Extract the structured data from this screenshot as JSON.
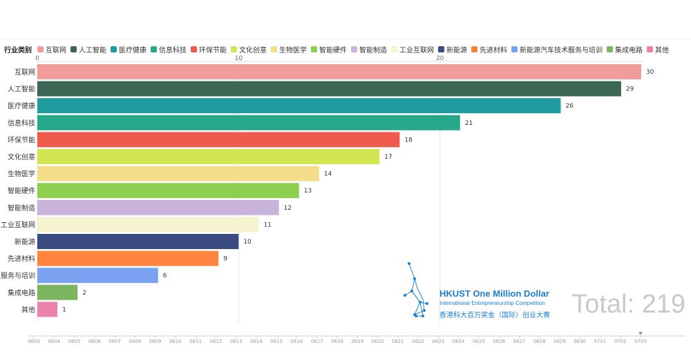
{
  "legend": {
    "title": "行业类别",
    "items": [
      {
        "label": "互联网",
        "color": "#f29b9b"
      },
      {
        "label": "人工智能",
        "color": "#3b6654"
      },
      {
        "label": "医疗健康",
        "color": "#1f9ba0"
      },
      {
        "label": "信息科技",
        "color": "#26a98a"
      },
      {
        "label": "环保节能",
        "color": "#f05a4d"
      },
      {
        "label": "文化创意",
        "color": "#d4e554"
      },
      {
        "label": "生物医学",
        "color": "#f4dd88"
      },
      {
        "label": "智能硬件",
        "color": "#8fcf4f"
      },
      {
        "label": "智能制造",
        "color": "#c8b3da"
      },
      {
        "label": "工业互联网",
        "color": "#f6f3cf"
      },
      {
        "label": "新能源",
        "color": "#3a4b82"
      },
      {
        "label": "先进材料",
        "color": "#ff8440"
      },
      {
        "label": "新能源汽车技术服务与培训",
        "color": "#7aa2f0"
      },
      {
        "label": "集成电路",
        "color": "#7cb560"
      },
      {
        "label": "其他",
        "color": "#ec83ad"
      }
    ]
  },
  "chart_data": {
    "type": "bar",
    "orientation": "horizontal",
    "categories": [
      "互联网",
      "人工智能",
      "医疗健康",
      "信息科技",
      "环保节能",
      "文化创意",
      "生物医学",
      "智能硬件",
      "智能制造",
      "工业互联网",
      "新能源",
      "先进材料",
      "服务与培训",
      "集成电路",
      "其他"
    ],
    "values": [
      30,
      29,
      26,
      21,
      18,
      17,
      14,
      13,
      12,
      11,
      10,
      9,
      6,
      2,
      1
    ],
    "colors": [
      "#f29b9b",
      "#3b6654",
      "#1f9ba0",
      "#26a98a",
      "#f05a4d",
      "#d4e554",
      "#f4dd88",
      "#8fcf4f",
      "#c8b3da",
      "#f6f3cf",
      "#3a4b82",
      "#ff8440",
      "#7aa2f0",
      "#7cb560",
      "#ec83ad"
    ],
    "x_ticks": [
      0,
      10,
      20
    ],
    "xlim": [
      0,
      30
    ],
    "grid": true,
    "legend_position": "top-left"
  },
  "total_label": "Total: 219",
  "timeline": {
    "ticks": [
      "0603",
      "0604",
      "0605",
      "0606",
      "0607",
      "0608",
      "0609",
      "0610",
      "0611",
      "0612",
      "0613",
      "0614",
      "0615",
      "0616",
      "0617",
      "0618",
      "0619",
      "0620",
      "0621",
      "0622",
      "0623",
      "0624",
      "0625",
      "0626",
      "0627",
      "0628",
      "0629",
      "0630",
      "0701",
      "0702",
      "0703"
    ],
    "current": "0703",
    "current_index": 30
  },
  "logo": {
    "title": "HKUST One Million Dollar",
    "subtitle": "International Entrepreneurship Competition",
    "chinese": "香港科大百万奖金（国际）创业大赛"
  }
}
